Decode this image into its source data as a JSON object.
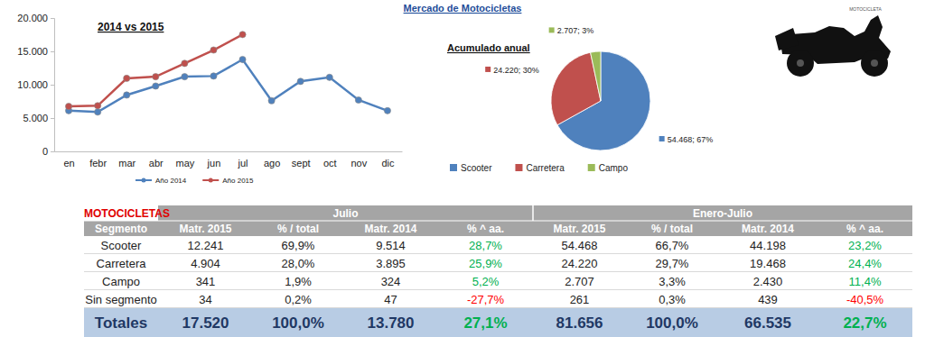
{
  "title": "Mercado de Motocicletas",
  "icon_label": "MOTOCICLETA",
  "chart_data": [
    {
      "type": "line",
      "title": "2014 vs 2015",
      "categories": [
        "en",
        "febr",
        "mar",
        "abr",
        "may",
        "jun",
        "jul",
        "ago",
        "sept",
        "oct",
        "nov",
        "dic"
      ],
      "series": [
        {
          "name": "Año 2014",
          "color": "#4f81bd",
          "marker": "circle",
          "values": [
            6100,
            5900,
            8450,
            9800,
            11200,
            11300,
            13780,
            7600,
            10500,
            11100,
            7700,
            6100
          ]
        },
        {
          "name": "Año 2015",
          "color": "#c0504d",
          "marker": "circle",
          "values": [
            6750,
            6850,
            10950,
            11200,
            13200,
            15200,
            17520,
            null,
            null,
            null,
            null,
            null
          ]
        }
      ],
      "ylim": [
        0,
        20000
      ],
      "yticks": [
        0,
        {
          "value": 5000,
          "label": "5.000"
        },
        {
          "value": 10000,
          "label": "10.000"
        },
        {
          "value": 15000,
          "label": "15.000"
        },
        {
          "value": 20000,
          "label": "20.000"
        }
      ],
      "grid": false,
      "legend": "bottom"
    },
    {
      "type": "pie",
      "title": "Acumulado anual",
      "categories": [
        "Scooter",
        "Carretera",
        "Campo"
      ],
      "values": [
        54468,
        24220,
        2707
      ],
      "value_labels": [
        "54.468; 67%",
        "24.220; 30%",
        "2.707; 3%"
      ],
      "colors": [
        "#4f81bd",
        "#c0504d",
        "#9bbb59"
      ],
      "data_labels": true,
      "legend": "bottom"
    }
  ],
  "table": {
    "title": "MOTOCICLETAS",
    "groups": [
      "Julio",
      "Enero-Julio"
    ],
    "header": [
      "Segmento",
      "Matr. 2015",
      "% / total",
      "Matr. 2014",
      "% ^ aa.",
      "Matr. 2015",
      "% / total",
      "Matr. 2014",
      "% ^ aa."
    ],
    "rows": [
      [
        "Scooter",
        "12.241",
        "69,9%",
        "9.514",
        "28,7%",
        "54.468",
        "66,7%",
        "44.198",
        "23,2%"
      ],
      [
        "Carretera",
        "4.904",
        "28,0%",
        "3.895",
        "25,9%",
        "24.220",
        "29,7%",
        "19.468",
        "24,4%"
      ],
      [
        "Campo",
        "341",
        "1,9%",
        "324",
        "5,2%",
        "2.707",
        "3,3%",
        "2.430",
        "11,4%"
      ],
      [
        "Sin segmento",
        "34",
        "0,2%",
        "47",
        "-27,7%",
        "261",
        "0,3%",
        "439",
        "-40,5%"
      ]
    ],
    "totals": [
      "Totales",
      "17.520",
      "100,0%",
      "13.780",
      "27,1%",
      "81.656",
      "100,0%",
      "66.535",
      "22,7%"
    ]
  }
}
